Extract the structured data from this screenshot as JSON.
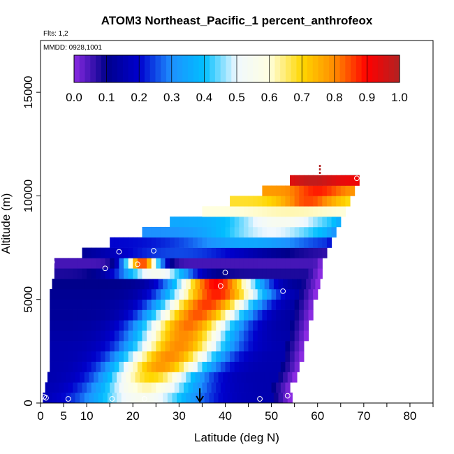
{
  "chart_data": {
    "type": "heatmap",
    "title": "ATOM3 Northeast_Pacific_1 percent_anthrofeox",
    "subtitle_flights": "Flts: 1,2",
    "subtitle_dates": "MMDD: 0928,1001",
    "xlabel": "Latitude (deg N)",
    "ylabel": "Altitude (m)",
    "xlim": [
      0,
      85
    ],
    "ylim": [
      0,
      17500
    ],
    "x_ticks": [
      0,
      5,
      10,
      20,
      30,
      40,
      50,
      60,
      70,
      80
    ],
    "x_tick_labels": [
      "0",
      "5",
      "10",
      "20",
      "30",
      "40",
      "50",
      "60",
      "70",
      "80"
    ],
    "x_minor_ticks": [
      15,
      25,
      35,
      45,
      55,
      65,
      75,
      85
    ],
    "y_ticks": [
      0,
      5000,
      10000,
      15000
    ],
    "y_tick_labels": [
      "0",
      "5000",
      "10000",
      "15000"
    ],
    "colorbar": {
      "min": 0.0,
      "max": 1.0,
      "tick_labels": [
        "0.0",
        "0.1",
        "0.2",
        "0.3",
        "0.4",
        "0.5",
        "0.6",
        "0.7",
        "0.8",
        "0.9",
        "1.0"
      ],
      "stops": [
        "#8a2be2",
        "#00008b",
        "#0000cd",
        "#1e90ff",
        "#00bfff",
        "#f0f8ff",
        "#ffffe0",
        "#ffd700",
        "#ff8c00",
        "#ff0000",
        "#b22222"
      ]
    },
    "bands": [
      {
        "y0": 0,
        "y1": 500,
        "x0": 0.5,
        "x1": 54,
        "peak_x": 22,
        "peak_v": 0.55,
        "width": 12,
        "base_v": 0.15,
        "edge_v": 0.0
      },
      {
        "y0": 500,
        "y1": 1000,
        "x0": 1,
        "x1": 54,
        "peak_x": 23,
        "peak_v": 0.62,
        "width": 11,
        "base_v": 0.15,
        "edge_v": 0.0
      },
      {
        "y0": 1000,
        "y1": 1500,
        "x0": 1.5,
        "x1": 55,
        "peak_x": 24,
        "peak_v": 0.7,
        "width": 10,
        "base_v": 0.15,
        "edge_v": 0.0
      },
      {
        "y0": 1500,
        "y1": 2000,
        "x0": 2,
        "x1": 56,
        "peak_x": 26,
        "peak_v": 0.78,
        "width": 10,
        "base_v": 0.15,
        "edge_v": 0.0
      },
      {
        "y0": 2000,
        "y1": 2500,
        "x0": 2,
        "x1": 56.5,
        "peak_x": 28,
        "peak_v": 0.8,
        "width": 10,
        "base_v": 0.15,
        "edge_v": 0.0
      },
      {
        "y0": 2500,
        "y1": 3000,
        "x0": 2,
        "x1": 57,
        "peak_x": 30,
        "peak_v": 0.8,
        "width": 10,
        "base_v": 0.15,
        "edge_v": 0.0
      },
      {
        "y0": 3000,
        "y1": 3500,
        "x0": 2,
        "x1": 57.5,
        "peak_x": 31,
        "peak_v": 0.8,
        "width": 10,
        "base_v": 0.14,
        "edge_v": 0.0
      },
      {
        "y0": 3500,
        "y1": 4000,
        "x0": 2,
        "x1": 58,
        "peak_x": 32,
        "peak_v": 0.82,
        "width": 10,
        "base_v": 0.13,
        "edge_v": 0.0
      },
      {
        "y0": 4000,
        "y1": 4500,
        "x0": 2,
        "x1": 58.5,
        "peak_x": 34,
        "peak_v": 0.84,
        "width": 10,
        "base_v": 0.12,
        "edge_v": 0.0
      },
      {
        "y0": 4500,
        "y1": 5000,
        "x0": 2,
        "x1": 59,
        "peak_x": 36,
        "peak_v": 0.86,
        "width": 10,
        "base_v": 0.12,
        "edge_v": 0.0
      },
      {
        "y0": 5000,
        "y1": 5500,
        "x0": 2,
        "x1": 59.5,
        "peak_x": 38,
        "peak_v": 0.88,
        "width": 10,
        "base_v": 0.11,
        "edge_v": 0.0
      },
      {
        "y0": 5500,
        "y1": 6000,
        "x0": 2.5,
        "x1": 60,
        "peak_x": 38,
        "peak_v": 0.9,
        "width": 9,
        "base_v": 0.1,
        "edge_v": 0.0
      },
      {
        "y0": 6000,
        "y1": 6500,
        "x0": 3,
        "x1": 60.5,
        "peak_x": 25,
        "peak_v": 0.55,
        "width": 8,
        "base_v": 0.08,
        "edge_v": 0.0
      },
      {
        "y0": 6500,
        "y1": 7000,
        "x0": 3,
        "x1": 61,
        "peak_x": 22,
        "peak_v": 0.85,
        "width": 4,
        "base_v": 0.05,
        "edge_v": 0.0
      },
      {
        "y0": 7000,
        "y1": 7500,
        "x0": 9,
        "x1": 62,
        "peak_x": 30,
        "peak_v": 0.25,
        "width": 20,
        "base_v": 0.05,
        "edge_v": 0.05
      },
      {
        "y0": 7500,
        "y1": 8000,
        "x0": 15,
        "x1": 63,
        "peak_x": 45,
        "peak_v": 0.35,
        "width": 14,
        "base_v": 0.2,
        "edge_v": 0.2
      },
      {
        "y0": 8000,
        "y1": 8500,
        "x0": 22,
        "x1": 64,
        "peak_x": 50,
        "peak_v": 0.5,
        "width": 12,
        "base_v": 0.3,
        "edge_v": 0.3
      },
      {
        "y0": 8500,
        "y1": 9000,
        "x0": 28,
        "x1": 65,
        "peak_x": 52,
        "peak_v": 0.55,
        "width": 10,
        "base_v": 0.35,
        "edge_v": 0.35
      },
      {
        "y0": 9000,
        "y1": 9500,
        "x0": 35,
        "x1": 66,
        "peak_x": 54,
        "peak_v": 0.62,
        "width": 8,
        "base_v": 0.6,
        "edge_v": 0.6
      },
      {
        "y0": 9500,
        "y1": 10000,
        "x0": 41,
        "x1": 67,
        "peak_x": 58,
        "peak_v": 0.85,
        "width": 6,
        "base_v": 0.68,
        "edge_v": 0.68
      },
      {
        "y0": 10000,
        "y1": 10500,
        "x0": 48,
        "x1": 68,
        "peak_x": 60,
        "peak_v": 0.88,
        "width": 5,
        "base_v": 0.78,
        "edge_v": 0.78
      },
      {
        "y0": 10500,
        "y1": 11000,
        "x0": 54,
        "x1": 69,
        "peak_x": 59,
        "peak_v": 0.98,
        "width": 5,
        "base_v": 0.92,
        "edge_v": 0.92
      }
    ],
    "diagonal_tail": {
      "from": [
        55,
        6000
      ],
      "to": [
        69,
        11000
      ],
      "value": 0.4
    },
    "markers": [
      {
        "x": 0.8,
        "y": 300
      },
      {
        "x": 1.2,
        "y": 250
      },
      {
        "x": 6,
        "y": 200
      },
      {
        "x": 15.5,
        "y": 200
      },
      {
        "x": 22.5,
        "y": 200
      },
      {
        "x": 47.5,
        "y": 200
      },
      {
        "x": 53.5,
        "y": 350
      },
      {
        "x": 2.5,
        "y": 6800
      },
      {
        "x": 14,
        "y": 6500
      },
      {
        "x": 17,
        "y": 7300
      },
      {
        "x": 21,
        "y": 6700
      },
      {
        "x": 24.5,
        "y": 7350
      },
      {
        "x": 39,
        "y": 5650
      },
      {
        "x": 40,
        "y": 6300
      },
      {
        "x": 52.5,
        "y": 5400
      },
      {
        "x": 68.5,
        "y": 10850
      }
    ],
    "arrow_x": 34.5,
    "top_marker_x": 60.5
  }
}
